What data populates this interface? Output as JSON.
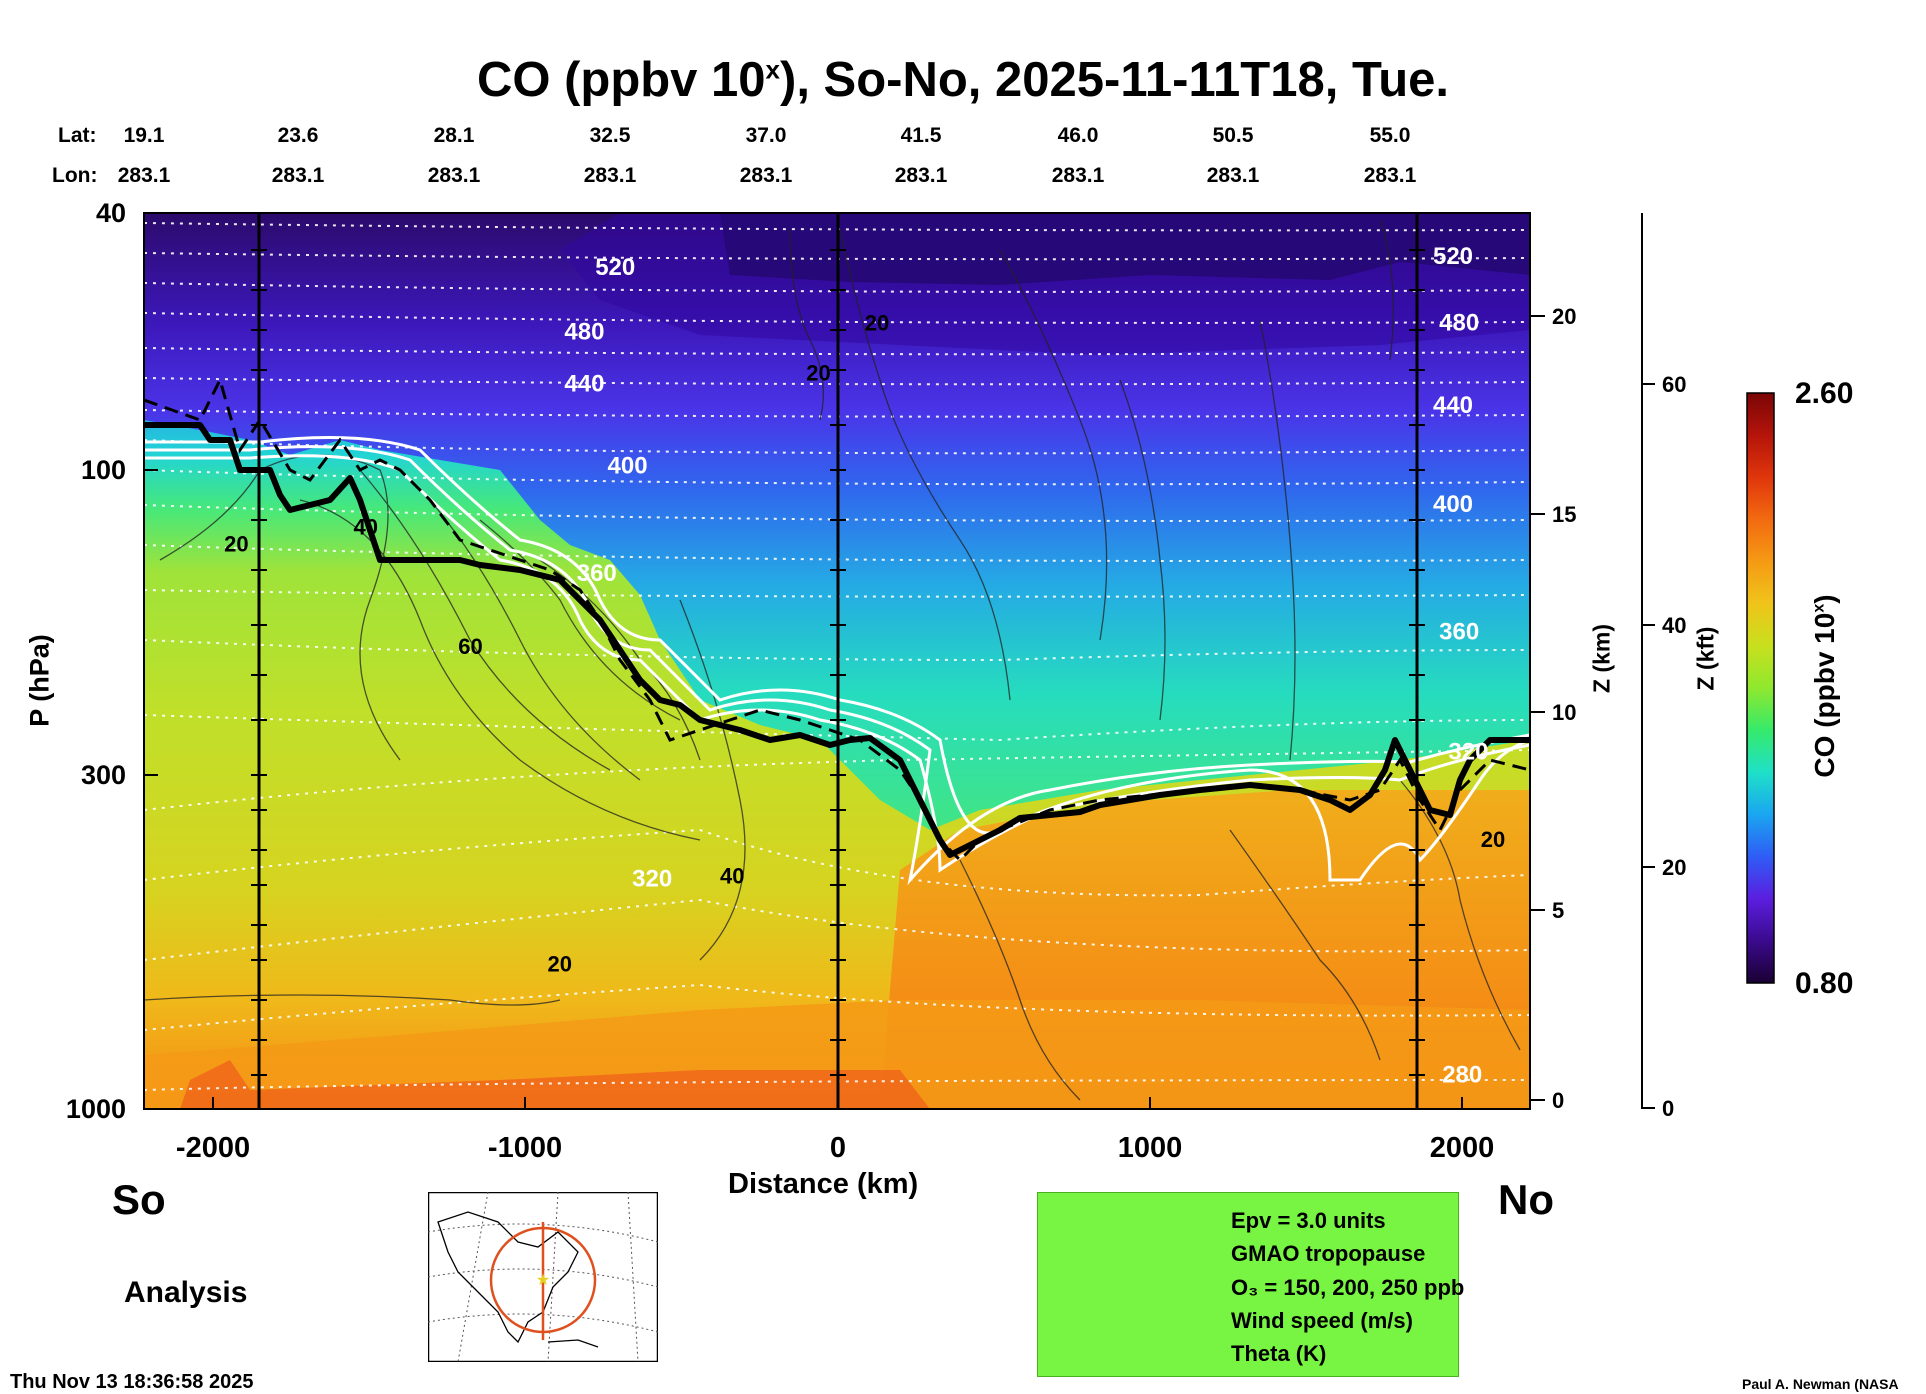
{
  "title": "CO (ppbv 10^x), So-No, 2025-11-11T18, Tue.",
  "title_parts": {
    "main": "CO (ppbv 10",
    "sup": "x",
    "rest": "), So-No, 2025-11-11T18, Tue."
  },
  "header": {
    "lat_label": "Lat:",
    "lon_label": "Lon:",
    "lats": [
      "19.1",
      "23.6",
      "28.1",
      "32.5",
      "37.0",
      "41.5",
      "46.0",
      "50.5",
      "55.0"
    ],
    "lons": [
      "283.1",
      "283.1",
      "283.1",
      "283.1",
      "283.1",
      "283.1",
      "283.1",
      "283.1",
      "283.1"
    ]
  },
  "axes": {
    "y_left_label": "P (hPa)",
    "y_z_km_label": "Z (km)",
    "y_z_kft_label": "Z (kft)",
    "x_label": "Distance (km)",
    "x_ticks": [
      "-2000",
      "-1000",
      "0",
      "1000",
      "2000"
    ],
    "p_ticks": [
      "40",
      "100",
      "300",
      "1000"
    ],
    "z_km_ticks": [
      "20",
      "15",
      "10",
      "5",
      "0"
    ],
    "z_kft_ticks": [
      "60",
      "40",
      "20",
      "0"
    ]
  },
  "endpoints": {
    "south": "So",
    "north": "No"
  },
  "analysis_label": "Analysis",
  "timestamp": "Thu Nov 13 18:36:58 2025",
  "credit": "Paul A. Newman (NASA",
  "colorbar": {
    "label": "CO (ppbv 10^x)",
    "label_main": "CO (ppbv 10",
    "label_sup": "x",
    "label_rest": ")",
    "max": "2.60",
    "min": "0.80",
    "colors": [
      "#1a0033",
      "#3a0a8c",
      "#5b1ee0",
      "#2f5cf5",
      "#1aa6f0",
      "#1fe0c8",
      "#36ea6a",
      "#8fe82e",
      "#c8e01e",
      "#f0c41a",
      "#f59a14",
      "#f26a10",
      "#e0360c",
      "#b4140a",
      "#7a0606"
    ]
  },
  "legend": [
    {
      "label": "Epv = 3.0 units",
      "style": "dashed-black"
    },
    {
      "label": "GMAO tropopause",
      "style": "thick-black"
    },
    {
      "label": "O₃ = 150, 200, 250 ppb",
      "style": "white"
    },
    {
      "label": "Wind speed (m/s)",
      "style": "thin-black"
    },
    {
      "label": "Theta (K)",
      "style": "dotted-white"
    }
  ],
  "chart_data": {
    "type": "heatmap",
    "title": "CO (ppbv 10^x), So-No, 2025-11-11T18, Tue.",
    "xlabel": "Distance (km)",
    "ylabel": "P (hPa)",
    "xlim": [
      -2250,
      2250
    ],
    "ylim": [
      1000,
      40
    ],
    "y_scale": "log",
    "color_range": [
      0.8,
      2.6
    ],
    "theta_labels": [
      {
        "value": "520",
        "x": -720,
        "p": 50
      },
      {
        "value": "480",
        "x": -820,
        "p": 63
      },
      {
        "value": "440",
        "x": -820,
        "p": 76
      },
      {
        "value": "400",
        "x": -680,
        "p": 102
      },
      {
        "value": "360",
        "x": -780,
        "p": 150
      },
      {
        "value": "320",
        "x": -600,
        "p": 450
      },
      {
        "value": "520",
        "x": 2000,
        "p": 48
      },
      {
        "value": "480",
        "x": 2020,
        "p": 61
      },
      {
        "value": "440",
        "x": 2000,
        "p": 82
      },
      {
        "value": "400",
        "x": 2000,
        "p": 117
      },
      {
        "value": "360",
        "x": 2020,
        "p": 185
      },
      {
        "value": "320",
        "x": 2050,
        "p": 285
      },
      {
        "value": "280",
        "x": 2030,
        "p": 910
      }
    ],
    "wind_labels": [
      {
        "value": "20",
        "x": -1950,
        "p": 135
      },
      {
        "value": "40",
        "x": -1530,
        "p": 127
      },
      {
        "value": "60",
        "x": -1190,
        "p": 195
      },
      {
        "value": "40",
        "x": -340,
        "p": 445
      },
      {
        "value": "20",
        "x": -900,
        "p": 610
      },
      {
        "value": "20",
        "x": 130,
        "p": 61
      },
      {
        "value": "20",
        "x": -60,
        "p": 73
      },
      {
        "value": "20",
        "x": 2130,
        "p": 390
      }
    ]
  }
}
